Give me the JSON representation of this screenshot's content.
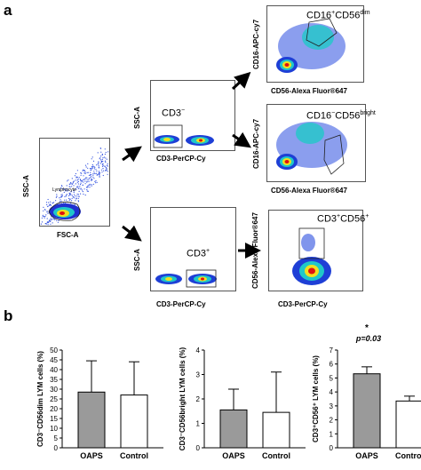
{
  "figure": {
    "panel_a_letter": "a",
    "panel_b_letter": "b"
  },
  "flow": {
    "scatter_main": {
      "ylabel": "SSC-A",
      "xlabel": "FSC-A",
      "gate_label": "Lymphocyte"
    },
    "cd3neg": {
      "ylabel": "SSC-A",
      "xlabel": "CD3-PerCP-Cy",
      "gate_main": "CD3",
      "gate_sup": "−"
    },
    "cd3pos": {
      "ylabel": "SSC-A",
      "xlabel": "CD3-PerCP-Cy",
      "gate_main": "CD3",
      "gate_sup": "+"
    },
    "dim": {
      "ylabel": "CD16-APC-cy7",
      "xlabel": "CD56-Alexa Fluor®647",
      "gate_a": "CD16",
      "gate_a_sup": "+",
      "gate_b": "CD56",
      "gate_b_sup": "dim"
    },
    "bright": {
      "ylabel": "CD16-APC-cy7",
      "xlabel": "CD56-Alexa Fluor®647",
      "gate_a": "CD16",
      "gate_a_sup": "−",
      "gate_b": "CD56",
      "gate_b_sup": "bright"
    },
    "nkt": {
      "ylabel": "CD56-Alexa Fluor®647",
      "xlabel": "CD3-PerCP-Cy",
      "gate_a": "CD3",
      "gate_a_sup": "+",
      "gate_b": "CD56",
      "gate_b_sup": "+"
    }
  },
  "chart_data": [
    {
      "type": "bar",
      "ylabel": "CD3⁻CD56dim LYM cells (%)",
      "categories": [
        "OAPS",
        "Control"
      ],
      "values": [
        28.5,
        27.0
      ],
      "error": [
        16.0,
        17.0
      ],
      "ylim": [
        0,
        50
      ],
      "yticks": [
        "0",
        "5",
        "10",
        "15",
        "20",
        "25",
        "30",
        "35",
        "40",
        "45",
        "50"
      ],
      "annotation": ""
    },
    {
      "type": "bar",
      "ylabel": "CD3⁻CD56bright LYM cells (%)",
      "categories": [
        "OAPS",
        "Control"
      ],
      "values": [
        1.55,
        1.45
      ],
      "error": [
        0.85,
        1.65
      ],
      "ylim": [
        0,
        4
      ],
      "yticks": [
        "0",
        "1",
        "2",
        "3",
        "4"
      ],
      "annotation": ""
    },
    {
      "type": "bar",
      "ylabel": "CD3⁺CD56⁺ LYM cells (%)",
      "categories": [
        "OAPS",
        "Control"
      ],
      "values": [
        5.3,
        3.35
      ],
      "error": [
        0.5,
        0.35
      ],
      "ylim": [
        0,
        7
      ],
      "yticks": [
        "0",
        "1",
        "2",
        "3",
        "4",
        "5",
        "6",
        "7"
      ],
      "annotation_star": "*",
      "annotation": "p=0.03"
    }
  ],
  "colors": {
    "oaps_fill": "#9a9a9a",
    "control_fill": "#ffffff",
    "density_low": "#1e3fd6",
    "density_mid": "#20c8c8",
    "density_high": "#f0e020",
    "density_peak": "#e01010"
  }
}
